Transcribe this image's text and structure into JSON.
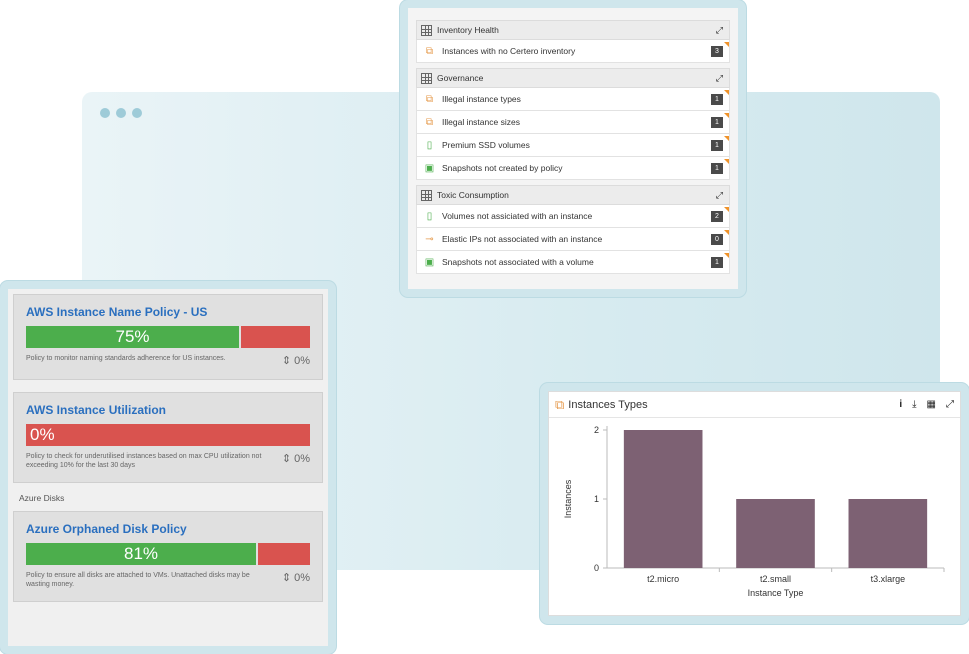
{
  "inventory_panel": {
    "groups": [
      {
        "title": "Inventory Health",
        "rows": [
          {
            "label": "Instances with no Certero inventory",
            "count": "3",
            "icon": "instances-icon"
          }
        ]
      },
      {
        "title": "Governance",
        "rows": [
          {
            "label": "Illegal instance types",
            "count": "1",
            "icon": "instances-icon"
          },
          {
            "label": "Illegal instance sizes",
            "count": "1",
            "icon": "instances-icon"
          },
          {
            "label": "Premium SSD volumes",
            "count": "1",
            "icon": "volume-icon"
          },
          {
            "label": "Snapshots not created by policy",
            "count": "1",
            "icon": "snapshot-icon"
          }
        ]
      },
      {
        "title": "Toxic Consumption",
        "rows": [
          {
            "label": "Volumes not assiciated with an instance",
            "count": "2",
            "icon": "volume-icon"
          },
          {
            "label": "Elastic IPs not associated with an instance",
            "count": "0",
            "icon": "key-icon"
          },
          {
            "label": "Snapshots not associated with a volume",
            "count": "1",
            "icon": "snapshot-icon"
          }
        ]
      }
    ]
  },
  "policies": [
    {
      "title": "AWS Instance Name Policy - US",
      "percent_label": "75%",
      "percent": 75,
      "description": "Policy to monitor naming standards adherence for US instances.",
      "change": "0%"
    },
    {
      "title": "AWS Instance Utilization",
      "percent_label": "0%",
      "percent": 0,
      "description": "Policy to check for underutilised instances based on max CPU utilization not exceeding 10% for the last 30 days",
      "change": "0%"
    }
  ],
  "azure_section": {
    "label": "Azure Disks",
    "policy": {
      "title": "Azure Orphaned Disk Policy",
      "percent_label": "81%",
      "percent": 81,
      "description": "Policy to ensure all disks are attached to VMs. Unattached disks may be wasting money.",
      "change": "0%"
    }
  },
  "chart_panel": {
    "title": "Instances Types",
    "tools": [
      "info-icon",
      "download-icon",
      "table-icon",
      "expand-icon"
    ]
  },
  "chart_data": {
    "type": "bar",
    "categories": [
      "t2.micro",
      "t2.small",
      "t3.xlarge"
    ],
    "values": [
      2,
      1,
      1
    ],
    "xlabel": "Instance Type",
    "ylabel": "Instances",
    "yticks": [
      0,
      1,
      2
    ],
    "ylim": [
      0,
      2
    ],
    "bar_color": "#7d6173"
  },
  "colors": {
    "green": "#4cae4c",
    "red": "#d9534f",
    "link_blue": "#2a6fbf",
    "accent_orange": "#f0932b"
  }
}
